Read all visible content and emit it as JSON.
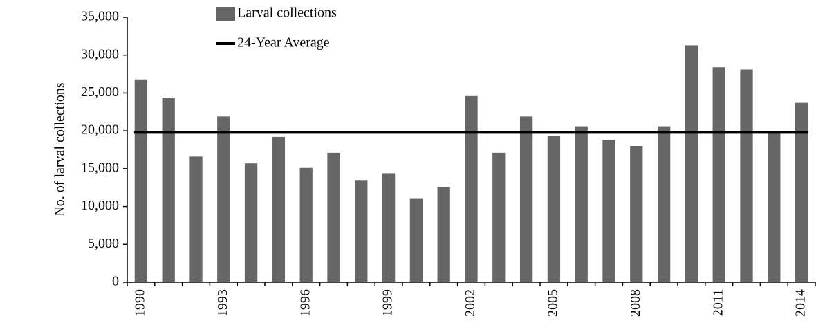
{
  "chart_data": {
    "type": "bar",
    "y_axis_label": "No. of larval collections",
    "categories": [
      "1990",
      null,
      null,
      "1993",
      null,
      null,
      "1996",
      null,
      null,
      "1999",
      null,
      null,
      "2002",
      null,
      null,
      "2005",
      null,
      null,
      "2008",
      null,
      null,
      "2011",
      null,
      null,
      "2014"
    ],
    "series": [
      {
        "name": "Larval collections",
        "color": "#666666",
        "values": [
          26800,
          24400,
          16600,
          21900,
          15700,
          19200,
          15100,
          17100,
          13500,
          14400,
          11100,
          12600,
          24600,
          17100,
          21900,
          19300,
          20600,
          18800,
          18000,
          20600,
          31300,
          28400,
          28100,
          19800,
          23700
        ]
      }
    ],
    "average_line": {
      "name": "24-Year Average",
      "value": 19800,
      "color": "#000000"
    },
    "ylim": [
      0,
      35000
    ],
    "yticks": [
      0,
      {
        "value": 5000,
        "label": "5,000"
      },
      {
        "value": 10000,
        "label": "10,000"
      },
      {
        "value": 15000,
        "label": "15,000"
      },
      {
        "value": 20000,
        "label": "20,000"
      },
      {
        "value": 25000,
        "label": "25,000"
      },
      {
        "value": 30000,
        "label": "30,000"
      },
      {
        "value": 35000,
        "label": "35,000"
      }
    ],
    "grid": false,
    "legend": "top"
  }
}
